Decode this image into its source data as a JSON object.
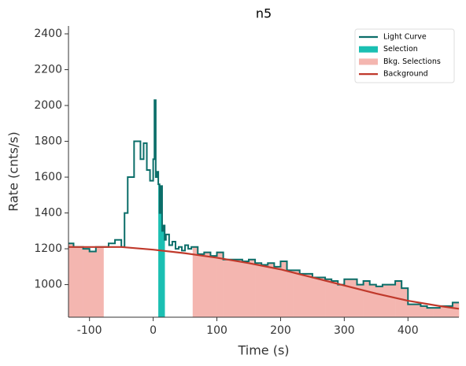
{
  "chart_data": {
    "type": "step",
    "title": "n5",
    "x_label": "Time (s)",
    "y_label": "Rate (cnts/s)",
    "xlim": [
      -133,
      480
    ],
    "ylim": [
      818,
      2444
    ],
    "xticks": [
      -100,
      0,
      100,
      200,
      300,
      400
    ],
    "yticks": [
      1000,
      1200,
      1400,
      1600,
      1800,
      2000,
      2200,
      2400
    ],
    "series": [
      {
        "name": "Light Curve",
        "color": "#0b6e69",
        "bins": [
          -133,
          -125,
          -110,
          -100,
          -90,
          -80,
          -70,
          -60,
          -50,
          -45,
          -40,
          -30,
          -20,
          -15,
          -10,
          -5,
          0,
          2,
          4,
          6,
          8,
          10,
          12,
          14,
          16,
          18,
          20,
          25,
          30,
          35,
          40,
          45,
          50,
          55,
          60,
          70,
          80,
          90,
          100,
          110,
          120,
          130,
          140,
          150,
          160,
          170,
          180,
          190,
          200,
          210,
          220,
          230,
          240,
          250,
          260,
          270,
          280,
          290,
          300,
          310,
          320,
          330,
          340,
          350,
          360,
          370,
          380,
          390,
          400,
          410,
          420,
          430,
          440,
          450,
          460,
          470,
          480
        ],
        "values": [
          1230,
          1210,
          1200,
          1185,
          1210,
          1210,
          1230,
          1250,
          1210,
          1400,
          1600,
          1800,
          1700,
          1790,
          1640,
          1580,
          1700,
          2030,
          1600,
          1630,
          1560,
          1400,
          1550,
          1300,
          1330,
          1250,
          1280,
          1220,
          1240,
          1200,
          1210,
          1190,
          1220,
          1200,
          1210,
          1170,
          1180,
          1160,
          1180,
          1140,
          1140,
          1140,
          1130,
          1140,
          1120,
          1110,
          1120,
          1100,
          1130,
          1080,
          1080,
          1060,
          1060,
          1040,
          1040,
          1030,
          1020,
          1000,
          1030,
          1030,
          1000,
          1020,
          1000,
          990,
          1000,
          1000,
          1020,
          980,
          890,
          890,
          880,
          870,
          870,
          880,
          880,
          900
        ]
      },
      {
        "name": "Background",
        "color": "#c0392b",
        "x": [
          -133,
          -50,
          0,
          50,
          100,
          150,
          200,
          250,
          300,
          350,
          400,
          450,
          480
        ],
        "values": [
          1210,
          1210,
          1195,
          1175,
          1150,
          1120,
          1085,
          1040,
          995,
          950,
          910,
          880,
          865
        ]
      }
    ],
    "selections": [
      {
        "name": "Selection",
        "color": "#1abfb2",
        "ranges": [
          [
            8,
            18
          ]
        ]
      },
      {
        "name": "Bkg. Selections",
        "color": "#f4b6b0",
        "ranges": [
          [
            -133,
            -78
          ],
          [
            62,
            480
          ]
        ]
      }
    ]
  }
}
